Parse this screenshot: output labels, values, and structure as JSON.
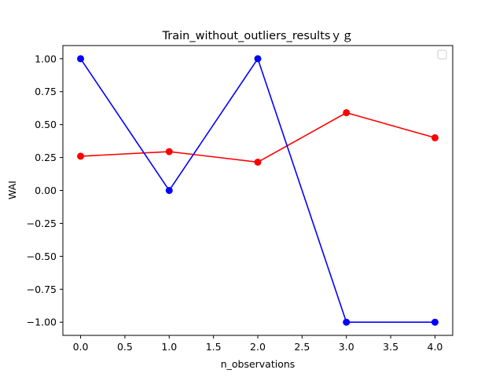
{
  "chart_data": {
    "type": "line",
    "title": "Train_without_outliers_resultsｙｇ",
    "xlabel": "n_observations",
    "ylabel": "WAI",
    "xlim": [
      -0.2,
      4.2
    ],
    "ylim": [
      -1.1,
      1.1
    ],
    "xticks": [
      0.0,
      0.5,
      1.0,
      1.5,
      2.0,
      2.5,
      3.0,
      3.5,
      4.0
    ],
    "xtick_labels": [
      "0.0",
      "0.5",
      "1.0",
      "1.5",
      "2.0",
      "2.5",
      "3.0",
      "3.5",
      "4.0"
    ],
    "yticks": [
      1.0,
      0.75,
      0.5,
      0.25,
      0.0,
      -0.25,
      -0.5,
      -0.75,
      -1.0
    ],
    "ytick_labels": [
      "1.00",
      "0.75",
      "0.50",
      "0.25",
      "0.00",
      "−0.25",
      "−0.50",
      "−0.75",
      "−1.00"
    ],
    "x": [
      0,
      1,
      2,
      3,
      4
    ],
    "series": [
      {
        "color": "#ff0000",
        "values": [
          0.26,
          0.295,
          0.215,
          0.59,
          0.4
        ]
      },
      {
        "color": "#0000ff",
        "values": [
          1.0,
          0.0,
          1.0,
          -1.0,
          -1.0
        ]
      }
    ],
    "grid": false,
    "legend": {
      "position": "top-right",
      "entries": []
    }
  }
}
